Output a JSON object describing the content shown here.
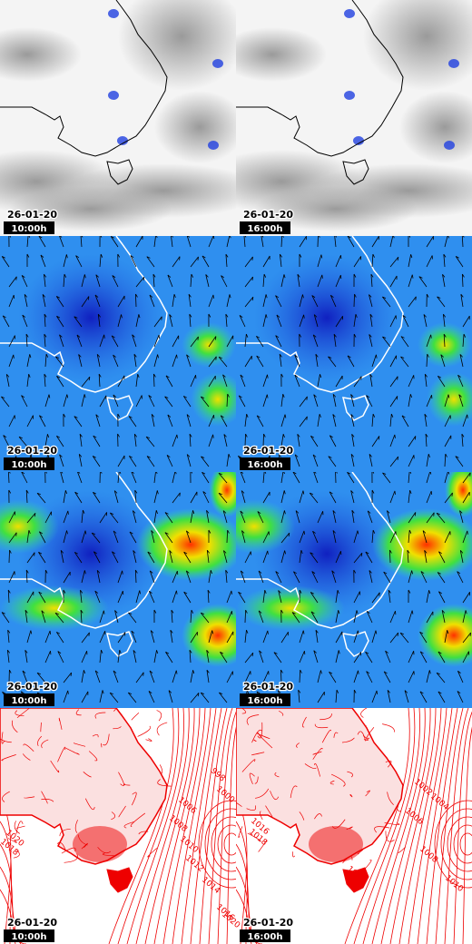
{
  "panels": [
    {
      "date": "26-01-20",
      "time": "10:00h"
    },
    {
      "date": "26-01-20",
      "time": "16:00h"
    },
    {
      "date": "26-01-20",
      "time": "10:00h"
    },
    {
      "date": "26-01-20",
      "time": "16:00h"
    },
    {
      "date": "26-01-20",
      "time": "10:00h"
    },
    {
      "date": "26-01-20",
      "time": "16:00h"
    },
    {
      "date": "26-01-20",
      "time": "10:00h"
    },
    {
      "date": "26-01-20",
      "time": "16:00h"
    }
  ],
  "contour_labels": {
    "left": [
      "998",
      "1000",
      "1006",
      "1008",
      "1010",
      "1012",
      "1014",
      "1016",
      "1020",
      "1018",
      "1020"
    ],
    "right": [
      "1002",
      "1004",
      "1006",
      "1008",
      "1010",
      "1012",
      "1016",
      "1018"
    ]
  }
}
